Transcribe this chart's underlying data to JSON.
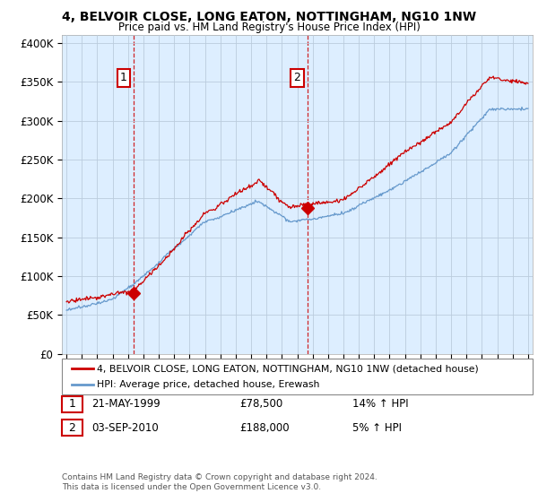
{
  "title": "4, BELVOIR CLOSE, LONG EATON, NOTTINGHAM, NG10 1NW",
  "subtitle": "Price paid vs. HM Land Registry's House Price Index (HPI)",
  "ylabel_ticks": [
    "£0",
    "£50K",
    "£100K",
    "£150K",
    "£200K",
    "£250K",
    "£300K",
    "£350K",
    "£400K"
  ],
  "ytick_values": [
    0,
    50000,
    100000,
    150000,
    200000,
    250000,
    300000,
    350000,
    400000
  ],
  "ylim": [
    0,
    410000
  ],
  "xlim": [
    1994.7,
    2025.3
  ],
  "legend_entries": [
    "4, BELVOIR CLOSE, LONG EATON, NOTTINGHAM, NG10 1NW (detached house)",
    "HPI: Average price, detached house, Erewash"
  ],
  "transaction1": {
    "label": "1",
    "date": "21-MAY-1999",
    "price": "£78,500",
    "hpi": "14% ↑ HPI",
    "year": 1999.38,
    "value": 78500
  },
  "transaction2": {
    "label": "2",
    "date": "03-SEP-2010",
    "price": "£188,000",
    "hpi": "5% ↑ HPI",
    "year": 2010.67,
    "value": 188000
  },
  "footnote": "Contains HM Land Registry data © Crown copyright and database right 2024.\nThis data is licensed under the Open Government Licence v3.0.",
  "red_color": "#cc0000",
  "blue_color": "#6699cc",
  "chart_bg": "#ddeeff",
  "background_color": "#ffffff",
  "grid_color": "#bbccdd"
}
